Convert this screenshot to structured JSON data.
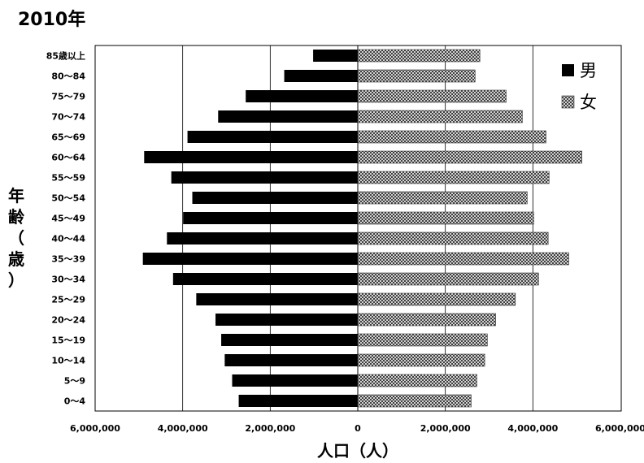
{
  "chart_data": {
    "type": "bar",
    "orientation": "horizontal",
    "layout": "population-pyramid",
    "title": "2010年",
    "xlabel": "人口（人）",
    "ylabel_chars": [
      "年",
      "齢",
      "（",
      "歳",
      "）"
    ],
    "categories": [
      "0～4",
      "5～9",
      "10～14",
      "15～19",
      "20～24",
      "25～29",
      "30～34",
      "35～39",
      "40～44",
      "45～49",
      "50～54",
      "55～59",
      "60～64",
      "65～69",
      "70～74",
      "75～79",
      "80～84",
      "85歳以上"
    ],
    "series": [
      {
        "name": "男",
        "color": "#000000",
        "values": [
          2720000,
          2870000,
          3040000,
          3120000,
          3250000,
          3690000,
          4220000,
          4910000,
          4360000,
          3990000,
          3780000,
          4260000,
          4880000,
          3890000,
          3190000,
          2560000,
          1680000,
          1020000
        ]
      },
      {
        "name": "女",
        "color": "crosshatch",
        "values": [
          2590000,
          2720000,
          2900000,
          2960000,
          3150000,
          3600000,
          4130000,
          4820000,
          4350000,
          4020000,
          3870000,
          4370000,
          5120000,
          4300000,
          3760000,
          3390000,
          2680000,
          2790000
        ]
      }
    ],
    "xlim": [
      -6000000,
      6000000
    ],
    "xtick_values": [
      -6000000,
      -4000000,
      -2000000,
      0,
      2000000,
      4000000,
      6000000
    ],
    "xtick_labels": [
      "6,000,000",
      "4,000,000",
      "2,000,000",
      "0",
      "2,000,000",
      "4,000,000",
      "6,000,000"
    ],
    "grid": "vertical",
    "legend_position": "top-right"
  }
}
